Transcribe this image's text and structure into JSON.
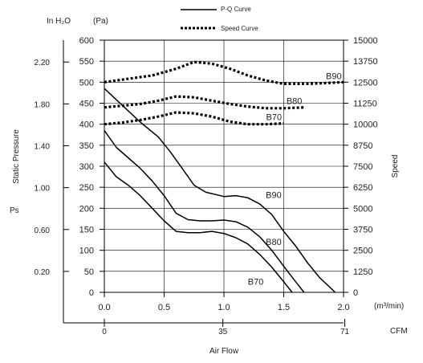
{
  "chart_data": {
    "type": "line",
    "title": "",
    "legend": {
      "position": "top-center",
      "entries": [
        {
          "label": "P-Q Curve",
          "style": "solid"
        },
        {
          "label": "Speed Curve",
          "style": "dotted"
        }
      ]
    },
    "units": {
      "left_inh2o": "In H₂O",
      "left_pa": "(Pa)",
      "bottom_m3min": "(m³/min)",
      "bottom_cfm": "CFM"
    },
    "axes": {
      "xlabel": "Air Flow",
      "ylabel_left": "Static Pressure",
      "ylabel_left_symbol": "Ps",
      "ylabel_right": "Speed",
      "x_m3min": {
        "range": [
          0,
          2.0
        ],
        "ticks": [
          "0.0",
          "0.5",
          "1.0",
          "1.5",
          "2.0"
        ]
      },
      "x_cfm": {
        "ticks": [
          {
            "value": 0,
            "label": "0"
          },
          {
            "value": 35,
            "label": "35"
          },
          {
            "value": 71,
            "label": "71"
          }
        ]
      },
      "y_pa": {
        "range": [
          0,
          600
        ],
        "ticks": [
          "0",
          "50",
          "100",
          "150",
          "200",
          "250",
          "300",
          "350",
          "400",
          "450",
          "500",
          "550",
          "600"
        ]
      },
      "y_inh2o": {
        "ticks": [
          "0.20",
          "0.60",
          "1.00",
          "1.40",
          "1.80",
          "2.20"
        ]
      },
      "y_speed": {
        "range": [
          0,
          15000
        ],
        "ticks": [
          "0",
          "1250",
          "2500",
          "3750",
          "5000",
          "6250",
          "7500",
          "8750",
          "10000",
          "11250",
          "12500",
          "13750",
          "15000"
        ]
      }
    },
    "grid": true,
    "pq_curves": [
      {
        "name": "B90",
        "x": [
          0,
          0.15,
          0.3,
          0.45,
          0.55,
          0.65,
          0.75,
          0.85,
          1.0,
          1.1,
          1.2,
          1.3,
          1.4,
          1.5,
          1.6,
          1.7,
          1.8,
          1.93
        ],
        "y": [
          485,
          445,
          405,
          370,
          335,
          295,
          255,
          238,
          228,
          230,
          225,
          210,
          185,
          145,
          110,
          70,
          35,
          0
        ]
      },
      {
        "name": "B80",
        "x": [
          0,
          0.1,
          0.2,
          0.3,
          0.4,
          0.5,
          0.6,
          0.7,
          0.8,
          0.9,
          1.0,
          1.1,
          1.2,
          1.3,
          1.4,
          1.5,
          1.6,
          1.67
        ],
        "y": [
          385,
          345,
          320,
          295,
          265,
          230,
          188,
          173,
          170,
          170,
          172,
          168,
          155,
          132,
          100,
          62,
          25,
          0
        ]
      },
      {
        "name": "B70",
        "x": [
          0,
          0.1,
          0.2,
          0.3,
          0.4,
          0.5,
          0.6,
          0.7,
          0.8,
          0.9,
          1.0,
          1.1,
          1.2,
          1.3,
          1.4,
          1.5,
          1.57
        ],
        "y": [
          310,
          275,
          255,
          230,
          200,
          170,
          145,
          142,
          142,
          145,
          140,
          130,
          115,
          90,
          60,
          25,
          0
        ]
      }
    ],
    "speed_curves": [
      {
        "name": "B90",
        "x": [
          0,
          0.2,
          0.4,
          0.6,
          0.75,
          0.9,
          1.05,
          1.2,
          1.35,
          1.5,
          1.7,
          1.85,
          2.0
        ],
        "y": [
          12500,
          12700,
          12900,
          13300,
          13700,
          13600,
          13300,
          12900,
          12600,
          12400,
          12400,
          12450,
          12500
        ]
      },
      {
        "name": "B80",
        "x": [
          0,
          0.15,
          0.3,
          0.45,
          0.6,
          0.75,
          0.9,
          1.05,
          1.2,
          1.35,
          1.5,
          1.67
        ],
        "y": [
          11000,
          11100,
          11200,
          11400,
          11650,
          11600,
          11400,
          11200,
          11050,
          10950,
          10950,
          11000
        ]
      },
      {
        "name": "B70",
        "x": [
          0,
          0.15,
          0.3,
          0.45,
          0.6,
          0.75,
          0.9,
          1.05,
          1.2,
          1.35,
          1.5
        ],
        "y": [
          10000,
          10100,
          10250,
          10450,
          10700,
          10650,
          10450,
          10150,
          10000,
          10000,
          10050
        ]
      }
    ],
    "curve_labels": [
      {
        "text": "B90",
        "curve": "speed"
      },
      {
        "text": "B80",
        "curve": "speed"
      },
      {
        "text": "B70",
        "curve": "speed"
      },
      {
        "text": "B90",
        "curve": "pq"
      },
      {
        "text": "B80",
        "curve": "pq"
      },
      {
        "text": "B70",
        "curve": "pq"
      }
    ]
  }
}
